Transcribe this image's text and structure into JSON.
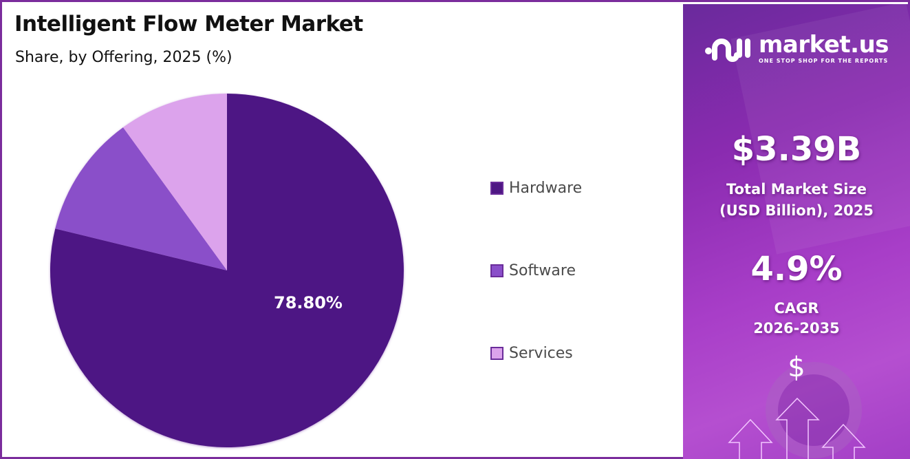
{
  "header": {
    "title": "Intelligent Flow Meter Market",
    "subtitle": "Share, by Offering, 2025 (%)"
  },
  "chart_data": {
    "type": "pie",
    "title": "Intelligent Flow Meter Market",
    "subtitle": "Share, by Offering, 2025 (%)",
    "categories": [
      "Hardware",
      "Software",
      "Services"
    ],
    "values": [
      78.8,
      11.2,
      10.0
    ],
    "colors": [
      "#4e1784",
      "#8a4fc9",
      "#dca3ec"
    ],
    "data_labels": [
      "78.80%",
      "",
      ""
    ],
    "legend_position": "right",
    "start_angle": "12 o'clock, counter-clockwise order Services/Software after Hardware"
  },
  "pie": {
    "label_hardware": "78.80%"
  },
  "legend": {
    "items": [
      {
        "label": "Hardware",
        "color": "#4e1784"
      },
      {
        "label": "Software",
        "color": "#8a4fc9"
      },
      {
        "label": "Services",
        "color": "#dca3ec"
      }
    ]
  },
  "sidebar": {
    "brand": {
      "name": "market.us",
      "tagline": "ONE STOP SHOP FOR THE REPORTS"
    },
    "market_size": {
      "value": "$3.39B",
      "label_line1": "Total Market Size",
      "label_line2": "(USD Billion), 2025"
    },
    "cagr": {
      "value": "4.9%",
      "label_line1": "CAGR",
      "label_line2": "2026-2035"
    },
    "decoration": {
      "dollar_sign": "$"
    },
    "colors": {
      "accent": "#8a2bb0"
    }
  }
}
